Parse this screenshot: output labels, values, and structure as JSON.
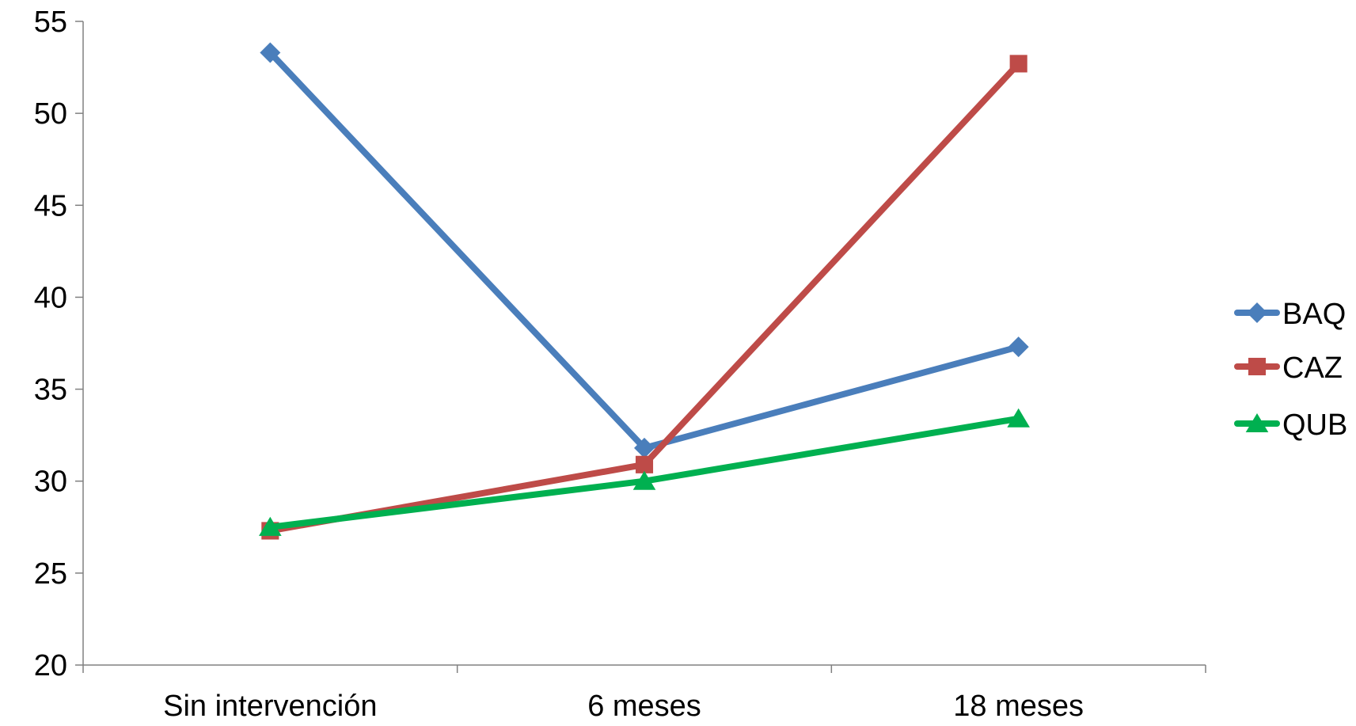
{
  "chart_data": {
    "type": "line",
    "categories": [
      "Sin intervención",
      "6 meses",
      "18 meses"
    ],
    "ylim": [
      20,
      55
    ],
    "yticks": [
      20,
      25,
      30,
      35,
      40,
      45,
      50,
      55
    ],
    "ytick_labels": [
      "20",
      "25",
      "30",
      "35",
      "40",
      "45",
      "50",
      "55"
    ],
    "grid": false,
    "legend_position": "right",
    "series": [
      {
        "name": "BAQ",
        "values": [
          53.3,
          31.8,
          37.3
        ],
        "color": "#4a7ebb",
        "marker": "diamond"
      },
      {
        "name": "CAZ",
        "values": [
          27.3,
          30.9,
          52.7
        ],
        "color": "#be4b48",
        "marker": "square"
      },
      {
        "name": "QUB",
        "values": [
          27.5,
          30.0,
          33.4
        ],
        "color": "#00b050",
        "marker": "triangle"
      }
    ]
  }
}
